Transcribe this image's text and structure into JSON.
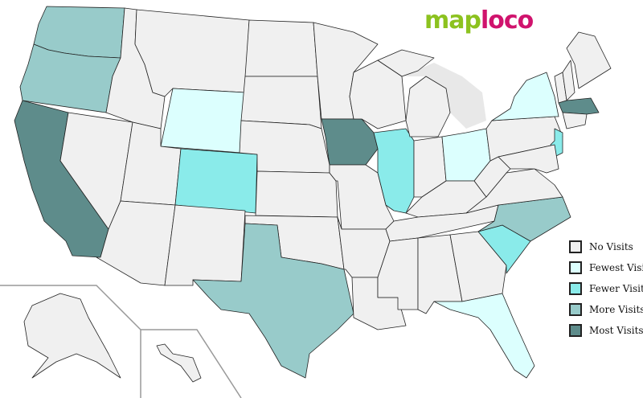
{
  "logo": {
    "part1": "map",
    "part2": "loco"
  },
  "legend": [
    {
      "key": "none",
      "label": "No Visits",
      "color": "#f0f0f0"
    },
    {
      "key": "fewest",
      "label": "Fewest Visits",
      "color": "#dcfffe"
    },
    {
      "key": "fewer",
      "label": "Fewer Visits",
      "color": "#8aebea"
    },
    {
      "key": "more",
      "label": "More Visits",
      "color": "#98cbca"
    },
    {
      "key": "most",
      "label": "Most Visits",
      "color": "#5e8c8b"
    }
  ],
  "state_levels": {
    "WA": "more",
    "OR": "more",
    "CA": "most",
    "NV": "none",
    "ID": "none",
    "MT": "none",
    "WY": "fewest",
    "UT": "none",
    "CO": "fewer",
    "AZ": "none",
    "NM": "none",
    "ND": "none",
    "SD": "none",
    "NE": "none",
    "KS": "none",
    "OK": "none",
    "TX": "more",
    "MN": "none",
    "IA": "most",
    "MO": "none",
    "AR": "none",
    "LA": "none",
    "WI": "none",
    "IL": "fewer",
    "MI": "none",
    "IN": "none",
    "OH": "fewest",
    "KY": "none",
    "TN": "none",
    "MS": "none",
    "AL": "none",
    "GA": "none",
    "FL": "fewest",
    "SC": "fewer",
    "NC": "more",
    "VA": "none",
    "WV": "none",
    "PA": "none",
    "NY": "fewest",
    "NJ": "fewer",
    "MD": "none",
    "VT": "none",
    "NH": "none",
    "ME": "none",
    "MA": "most",
    "CT": "none",
    "AK": "none",
    "HI": "none"
  }
}
